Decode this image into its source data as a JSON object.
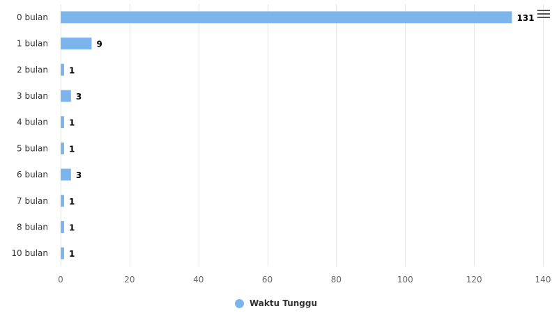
{
  "chart_data": {
    "type": "bar",
    "orientation": "horizontal",
    "categories": [
      "0 bulan",
      "1 bulan",
      "2 bulan",
      "3 bulan",
      "4 bulan",
      "5 bulan",
      "6 bulan",
      "7 bulan",
      "8 bulan",
      "10 bulan"
    ],
    "series": [
      {
        "name": "Waktu Tunggu",
        "values": [
          131,
          9,
          1,
          3,
          1,
          1,
          3,
          1,
          1,
          1
        ],
        "color": "#7cb5ec"
      }
    ],
    "xlim": [
      0,
      140
    ],
    "x_ticks": [
      0,
      20,
      40,
      60,
      80,
      100,
      120,
      140
    ],
    "grid": true,
    "legend": "bottom-center",
    "data_labels": true
  },
  "legend": {
    "label": "Waktu Tunggu",
    "color": "#7cb5ec"
  },
  "menu": {
    "icon": "hamburger-menu-icon"
  }
}
